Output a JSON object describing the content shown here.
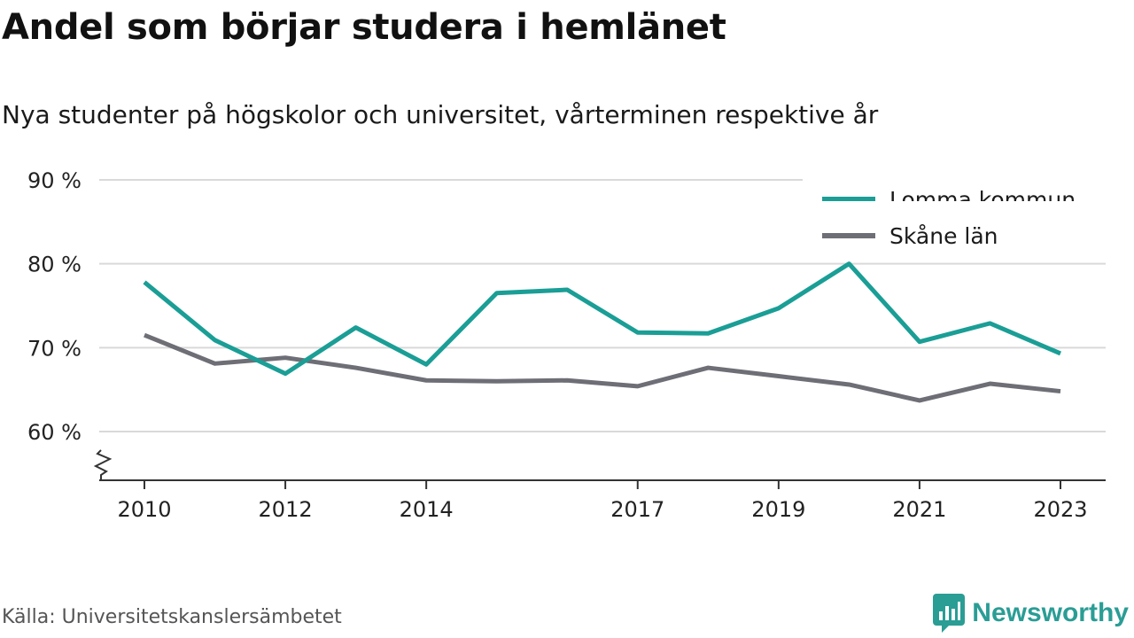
{
  "title": "Andel som börjar studera i hemlänet",
  "subtitle": "Nya studenter på högskolor och universitet, vårterminen respektive år",
  "source": "Källa: Universitetskanslersämbetet",
  "brand": {
    "name": "Newsworthy",
    "color": "#2a9d95"
  },
  "chart_data": {
    "type": "line",
    "x": [
      2010,
      2011,
      2012,
      2013,
      2014,
      2015,
      2016,
      2017,
      2018,
      2019,
      2020,
      2021,
      2022,
      2023
    ],
    "x_tick_labels": [
      "2010",
      "2012",
      "2014",
      "2017",
      "2019",
      "2021",
      "2023"
    ],
    "y_ticks": [
      60,
      70,
      80,
      90
    ],
    "y_tick_labels": [
      "60 %",
      "70 %",
      "80 %",
      "90 %"
    ],
    "ylim": [
      54,
      90
    ],
    "y_axis_break": true,
    "grid": true,
    "legend_position": "top-right",
    "series": [
      {
        "name": "Lomma kommun",
        "color": "#1a9e96",
        "values": [
          77.8,
          70.9,
          66.9,
          72.4,
          68.0,
          76.5,
          76.9,
          71.8,
          71.7,
          74.7,
          80.0,
          70.7,
          72.9,
          69.3
        ]
      },
      {
        "name": "Skåne län",
        "color": "#6e6e76",
        "values": [
          71.5,
          68.1,
          68.8,
          67.6,
          66.1,
          66.0,
          66.1,
          65.4,
          67.6,
          66.6,
          65.6,
          63.7,
          65.7,
          64.8
        ]
      }
    ]
  }
}
